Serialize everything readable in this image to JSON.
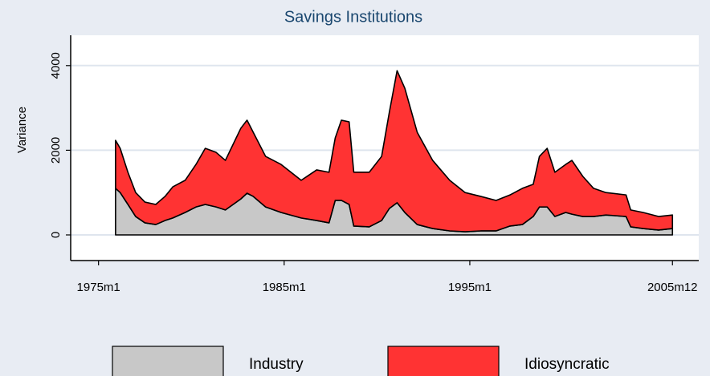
{
  "chart_data": {
    "type": "stacked_area",
    "title": "Savings Institutions",
    "y_label": "Variance",
    "x": [
      191,
      194,
      199,
      204,
      210,
      217,
      223,
      228,
      236,
      243,
      249,
      256,
      262,
      267,
      272,
      276,
      280,
      288,
      298,
      311,
      321,
      329,
      333,
      337,
      342,
      345,
      355,
      363,
      368,
      373,
      378,
      386,
      396,
      407,
      417,
      427,
      437,
      446,
      454,
      461,
      465,
      470,
      475,
      482,
      486,
      493,
      500,
      508,
      521,
      524,
      532,
      542,
      551
    ],
    "series": [
      {
        "name": "Industry",
        "color": "#c8c8c8",
        "values": [
          1100,
          1000,
          720,
          435,
          285,
          245,
          340,
          400,
          530,
          660,
          720,
          660,
          590,
          720,
          850,
          985,
          910,
          660,
          530,
          400,
          340,
          285,
          815,
          815,
          720,
          210,
          190,
          340,
          625,
          760,
          530,
          245,
          150,
          95,
          75,
          95,
          95,
          210,
          245,
          435,
          660,
          660,
          435,
          530,
          490,
          435,
          435,
          470,
          435,
          190,
          150,
          115,
          150
        ]
      },
      {
        "name": "Idiosyncratic",
        "color": "#ff3333",
        "values": [
          1135,
          1045,
          760,
          565,
          490,
          475,
          570,
          735,
          760,
          1005,
          1325,
          1290,
          1170,
          1420,
          1670,
          1725,
          1515,
          1195,
          1135,
          890,
          1195,
          1195,
          1475,
          1895,
          1950,
          1270,
          1290,
          1515,
          2275,
          3120,
          2935,
          2180,
          1610,
          1195,
          925,
          815,
          720,
          735,
          855,
          760,
          1195,
          1385,
          1045,
          1135,
          1270,
          950,
          665,
          530,
          510,
          400,
          380,
          320,
          320
        ]
      }
    ],
    "xlim": [
      162,
      568
    ],
    "ylim": [
      -606,
      4716
    ],
    "xticks": [
      {
        "value": 180,
        "label": "1975m1"
      },
      {
        "value": 300,
        "label": "1985m1"
      },
      {
        "value": 420,
        "label": "1995m1"
      },
      {
        "value": 551,
        "label": "2005m12"
      }
    ],
    "yticks": [
      0,
      2000,
      4000
    ],
    "grid": true,
    "legend": "bottom"
  }
}
